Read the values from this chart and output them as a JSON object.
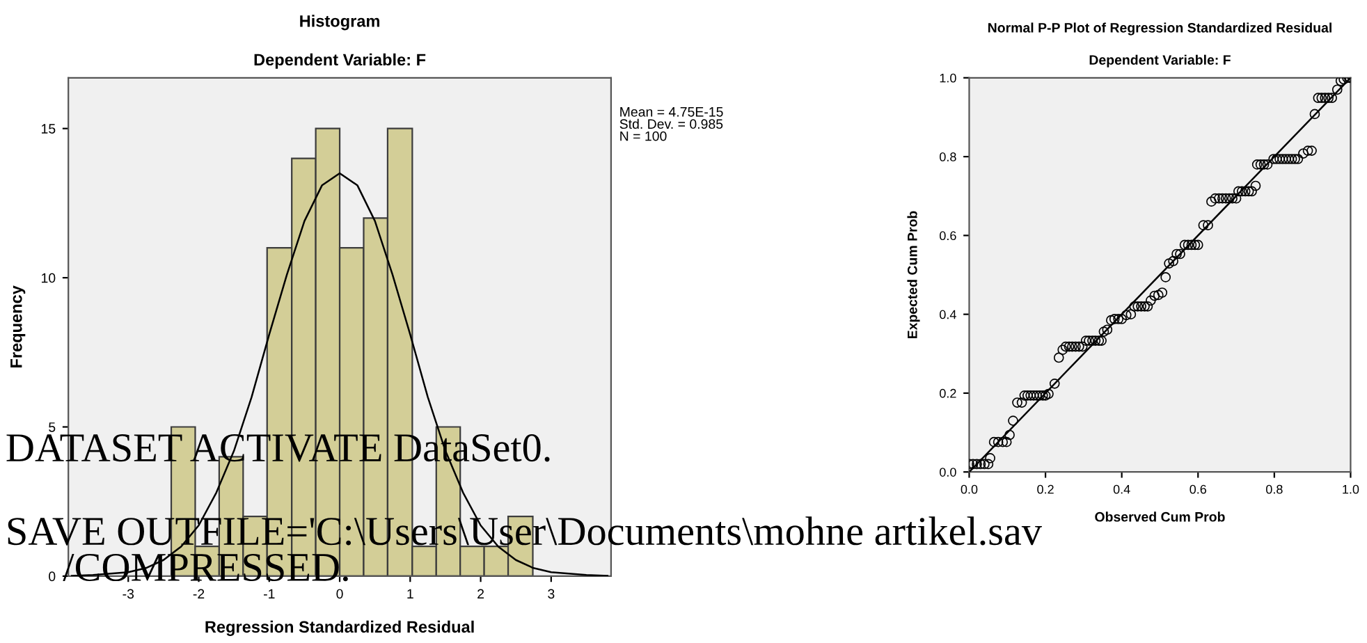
{
  "chart_data": [
    {
      "type": "histogram",
      "title": "Histogram",
      "subtitle": "Dependent Variable: F",
      "xlabel": "Regression Standardized Residual",
      "ylabel": "Frequency",
      "bins": [
        -2.39,
        -2.05,
        -1.71,
        -1.37,
        -1.03,
        -0.68,
        -0.34,
        0,
        0.34,
        0.68,
        1.03,
        1.37,
        1.71,
        2.05,
        2.39,
        2.74
      ],
      "values": [
        5,
        1,
        4,
        2,
        11,
        14,
        15,
        11,
        12,
        15,
        1,
        5,
        1,
        1,
        2
      ],
      "color": "#d3ce97",
      "series": [
        {
          "type": "line",
          "color": "#000000",
          "x": [
            -3.8,
            -3.5,
            -3,
            -2.75,
            -2.5,
            -2.25,
            -2,
            -1.75,
            -1.5,
            -1.25,
            -1,
            -0.75,
            -0.5,
            -0.25,
            0,
            0.25,
            0.5,
            0.75,
            1,
            1.25,
            1.5,
            1.75,
            2,
            2.25,
            2.5,
            2.75,
            3,
            3.5,
            3.8
          ],
          "values": [
            0.01,
            0.04,
            0.13,
            0.27,
            0.54,
            0.99,
            1.7,
            2.8,
            4.2,
            6.0,
            8.1,
            10.1,
            11.9,
            13.1,
            13.5,
            13.1,
            11.9,
            10.1,
            8.1,
            6.0,
            4.2,
            2.8,
            1.7,
            0.99,
            0.54,
            0.27,
            0.13,
            0.04,
            0.01
          ]
        }
      ],
      "xlim": [
        -3.85,
        3.85
      ],
      "ylim": [
        0,
        16.7
      ],
      "xticks": [
        -3,
        -2,
        -1,
        0,
        1,
        2,
        3
      ],
      "yticks": [
        0,
        5,
        10,
        15
      ],
      "grid": false,
      "annotations": [
        "Mean = 4.75E-15\nStd. Dev. = 0.985\nN = 100",
        "DATASET ACTIVATE DataSet0.",
        "SAVE OUTFILE='C:\\Users\\User\\Documents\\mohne artikel.sav",
        "/COMPRESSED."
      ]
    },
    {
      "type": "scatter",
      "title": "Normal P-P Plot of Regression Standardized Residual",
      "subtitle": "Dependent Variable: F",
      "xlabel": "Observed Cum Prob",
      "ylabel": "Expected Cum Prob",
      "series": [
        {
          "type": "scatter",
          "color": "#000000",
          "marker": "circle",
          "x": [
            0.0,
            0.01,
            0.02,
            0.03,
            0.04,
            0.05,
            0.055,
            0.065,
            0.076,
            0.088,
            0.098,
            0.106,
            0.115,
            0.126,
            0.138,
            0.145,
            0.153,
            0.161,
            0.169,
            0.177,
            0.185,
            0.193,
            0.2,
            0.208,
            0.224,
            0.235,
            0.245,
            0.253,
            0.262,
            0.27,
            0.279,
            0.288,
            0.297,
            0.306,
            0.314,
            0.323,
            0.331,
            0.34,
            0.347,
            0.353,
            0.362,
            0.372,
            0.381,
            0.391,
            0.4,
            0.412,
            0.424,
            0.433,
            0.442,
            0.451,
            0.46,
            0.468,
            0.476,
            0.486,
            0.496,
            0.506,
            0.515,
            0.524,
            0.535,
            0.544,
            0.553,
            0.565,
            0.574,
            0.583,
            0.592,
            0.6,
            0.614,
            0.626,
            0.635,
            0.645,
            0.655,
            0.664,
            0.673,
            0.682,
            0.69,
            0.7,
            0.706,
            0.715,
            0.724,
            0.733,
            0.741,
            0.751,
            0.755,
            0.764,
            0.773,
            0.782,
            0.798,
            0.806,
            0.814,
            0.822,
            0.83,
            0.838,
            0.846,
            0.854,
            0.862,
            0.876,
            0.888,
            0.898,
            0.906,
            0.915,
            0.924,
            0.933,
            0.942,
            0.951,
            0.965,
            0.974,
            0.982,
            0.991,
            0.998
          ],
          "values": [
            0.02,
            0.02,
            0.02,
            0.02,
            0.02,
            0.02,
            0.035,
            0.076,
            0.076,
            0.076,
            0.076,
            0.094,
            0.13,
            0.176,
            0.176,
            0.194,
            0.194,
            0.194,
            0.194,
            0.194,
            0.194,
            0.194,
            0.194,
            0.198,
            0.224,
            0.29,
            0.31,
            0.318,
            0.318,
            0.318,
            0.318,
            0.318,
            0.318,
            0.333,
            0.333,
            0.333,
            0.333,
            0.333,
            0.333,
            0.356,
            0.361,
            0.385,
            0.388,
            0.388,
            0.388,
            0.398,
            0.4,
            0.42,
            0.42,
            0.42,
            0.42,
            0.42,
            0.435,
            0.447,
            0.449,
            0.455,
            0.494,
            0.529,
            0.535,
            0.553,
            0.553,
            0.576,
            0.576,
            0.576,
            0.576,
            0.576,
            0.626,
            0.626,
            0.686,
            0.694,
            0.694,
            0.694,
            0.694,
            0.694,
            0.694,
            0.694,
            0.712,
            0.712,
            0.712,
            0.712,
            0.712,
            0.726,
            0.78,
            0.78,
            0.78,
            0.78,
            0.794,
            0.794,
            0.794,
            0.794,
            0.794,
            0.794,
            0.794,
            0.794,
            0.794,
            0.808,
            0.815,
            0.815,
            0.908,
            0.949,
            0.949,
            0.949,
            0.949,
            0.949,
            0.97,
            0.992,
            0.996,
            1.0,
            1.0
          ]
        },
        {
          "type": "line",
          "color": "#000000",
          "x": [
            0,
            1
          ],
          "values": [
            0,
            1
          ]
        }
      ],
      "xlim": [
        0,
        1
      ],
      "ylim": [
        0,
        1
      ],
      "xticks": [
        {
          "value": 0,
          "label": "0.0"
        },
        {
          "value": 0.2,
          "label": "0.2"
        },
        {
          "value": 0.4,
          "label": "0.4"
        },
        {
          "value": 0.6,
          "label": "0.6"
        },
        {
          "value": 0.8,
          "label": "0.8"
        },
        {
          "value": 1,
          "label": "1.0"
        }
      ],
      "yticks": [
        {
          "value": 0,
          "label": "0.0"
        },
        {
          "value": 0.2,
          "label": "0.2"
        },
        {
          "value": 0.4,
          "label": "0.4"
        },
        {
          "value": 0.6,
          "label": "0.6"
        },
        {
          "value": 0.8,
          "label": "0.8"
        },
        {
          "value": 1,
          "label": "1.0"
        }
      ],
      "grid": false
    }
  ]
}
